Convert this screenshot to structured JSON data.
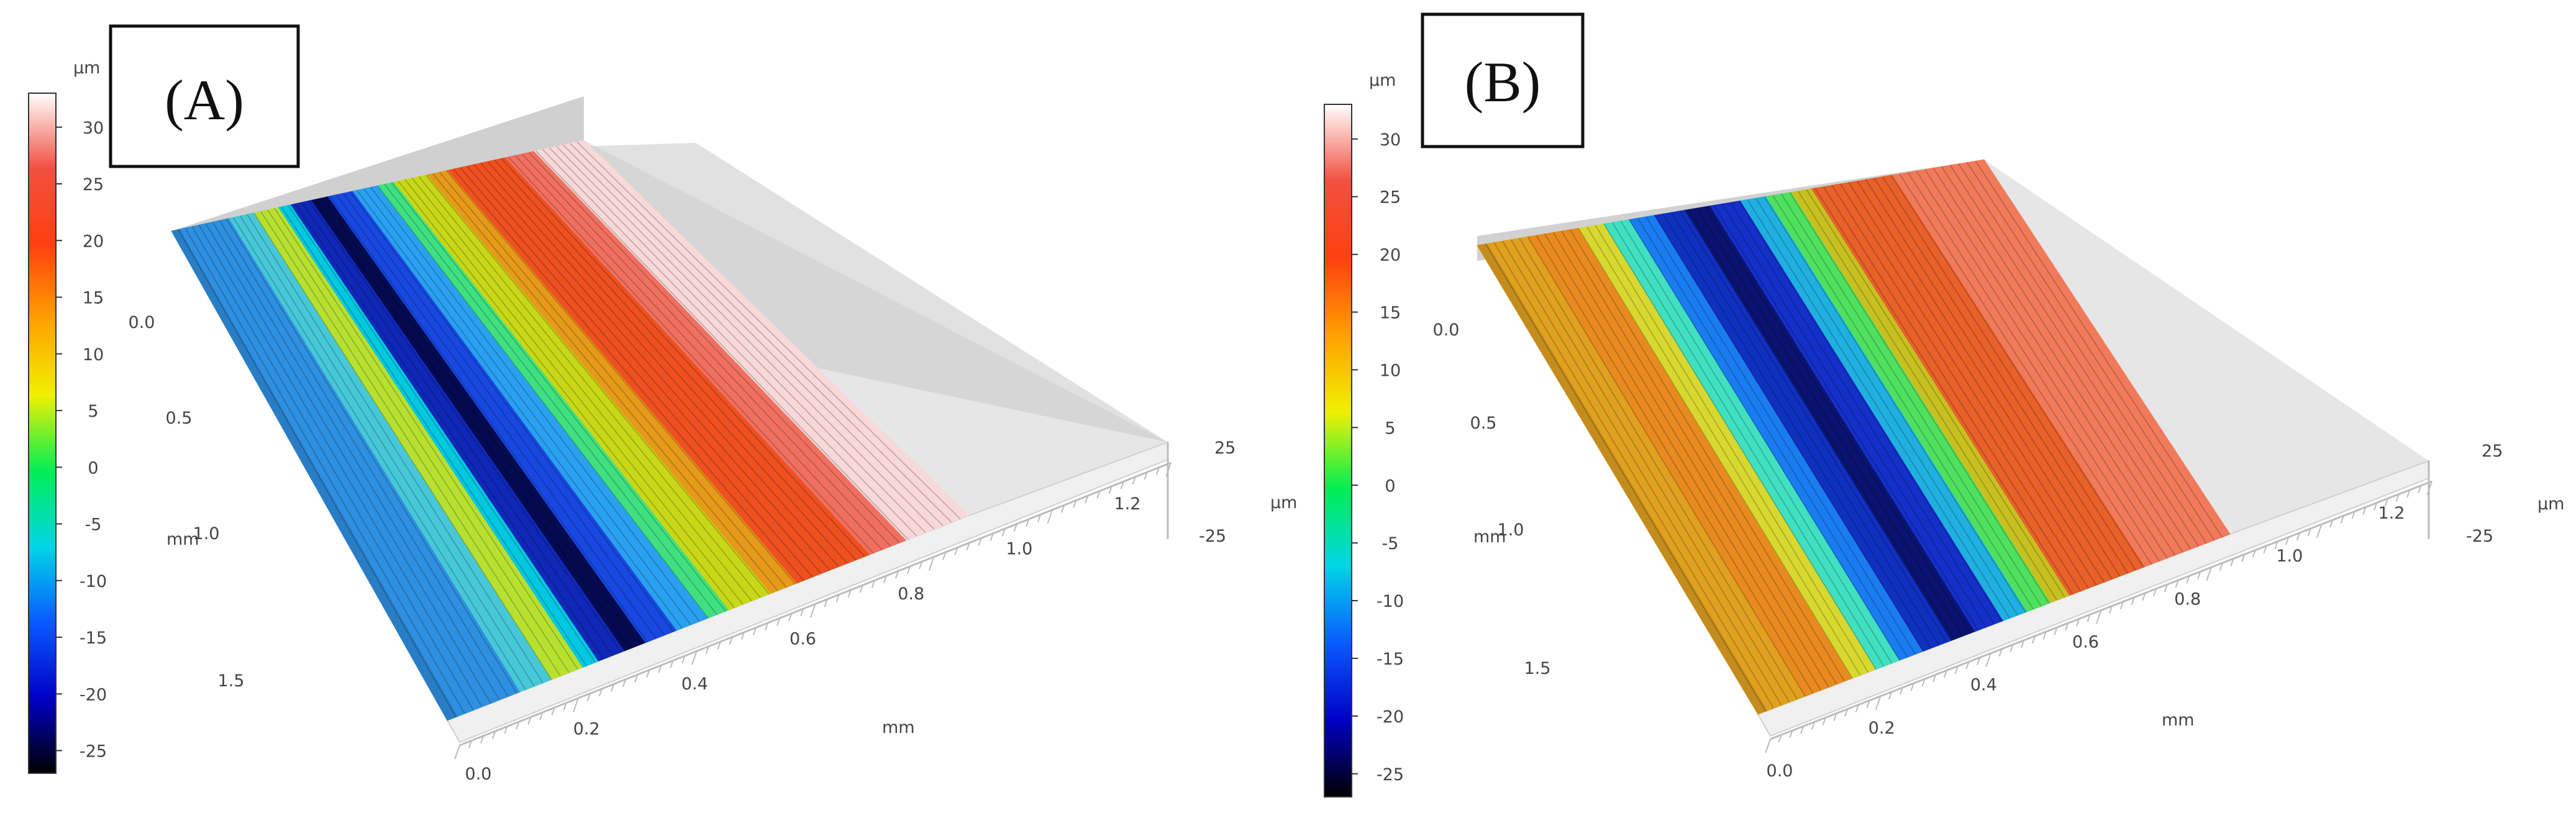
{
  "chart_data": [
    {
      "type": "heatmap",
      "title": "(A)",
      "colorbar": {
        "unit": "µm",
        "ticks": [
          "30",
          "25",
          "20",
          "15",
          "10",
          "5",
          "0",
          "-5",
          "-10",
          "-15",
          "-20",
          "-25"
        ],
        "range": [
          -27,
          33
        ],
        "colormap": [
          "#000000",
          "#0000c8",
          "#0a5aff",
          "#00d6e6",
          "#00ee55",
          "#f0f000",
          "#ffa000",
          "#ff4010",
          "#f05040",
          "#ffffff"
        ]
      },
      "axes": {
        "y_unit": "mm",
        "y_ticks": [
          "0.0",
          "0.5",
          "1.0",
          "1.5"
        ],
        "x_unit": "mm",
        "x_ticks": [
          "0.0",
          "0.2",
          "0.4",
          "0.6",
          "0.8",
          "1.0",
          "1.2"
        ],
        "z_unit": "µm",
        "z_ticks": [
          "25",
          "-25"
        ]
      },
      "bands": [
        {
          "color": "#2f8fe0",
          "share": 0.14
        },
        {
          "color": "#46c8d8",
          "share": 0.06
        },
        {
          "color": "#b8e030",
          "share": 0.06
        },
        {
          "color": "#00c8e0",
          "share": 0.03
        },
        {
          "color": "#1028b8",
          "share": 0.05
        },
        {
          "color": "#040a50",
          "share": 0.04
        },
        {
          "color": "#1848e0",
          "share": 0.06
        },
        {
          "color": "#2aa0f0",
          "share": 0.06
        },
        {
          "color": "#40e080",
          "share": 0.04
        },
        {
          "color": "#c8d818",
          "share": 0.08
        },
        {
          "color": "#e69a1a",
          "share": 0.05
        },
        {
          "color": "#ee5020",
          "share": 0.14
        },
        {
          "color": "#f07060",
          "share": 0.07
        },
        {
          "color": "#f8d8d8",
          "share": 0.12
        }
      ]
    },
    {
      "type": "heatmap",
      "title": "(B)",
      "colorbar": {
        "unit": "µm",
        "ticks": [
          "30",
          "25",
          "20",
          "15",
          "10",
          "5",
          "0",
          "-5",
          "-10",
          "-15",
          "-20",
          "-25"
        ],
        "range": [
          -27,
          33
        ],
        "colormap": [
          "#000000",
          "#0000c8",
          "#0a5aff",
          "#00d6e6",
          "#00ee55",
          "#f0f000",
          "#ffa000",
          "#ff4010",
          "#f05040",
          "#ffffff"
        ]
      },
      "axes": {
        "y_unit": "mm",
        "y_ticks": [
          "0.0",
          "0.5",
          "1.0",
          "1.5"
        ],
        "x_unit": "mm",
        "x_ticks": [
          "0.0",
          "0.2",
          "0.4",
          "0.6",
          "0.8",
          "1.0",
          "1.2"
        ],
        "z_unit": "µm",
        "z_ticks": [
          "25",
          "-25"
        ]
      },
      "bands": [
        {
          "color": "#e0a020",
          "share": 0.1
        },
        {
          "color": "#e88a20",
          "share": 0.1
        },
        {
          "color": "#d8d830",
          "share": 0.05
        },
        {
          "color": "#40e0c0",
          "share": 0.05
        },
        {
          "color": "#1a7cf0",
          "share": 0.05
        },
        {
          "color": "#1030c0",
          "share": 0.06
        },
        {
          "color": "#0a1470",
          "share": 0.05
        },
        {
          "color": "#1430c8",
          "share": 0.06
        },
        {
          "color": "#20b0e0",
          "share": 0.05
        },
        {
          "color": "#50e060",
          "share": 0.05
        },
        {
          "color": "#c8c020",
          "share": 0.04
        },
        {
          "color": "#e8602a",
          "share": 0.16
        },
        {
          "color": "#f07a5a",
          "share": 0.18
        }
      ]
    }
  ]
}
